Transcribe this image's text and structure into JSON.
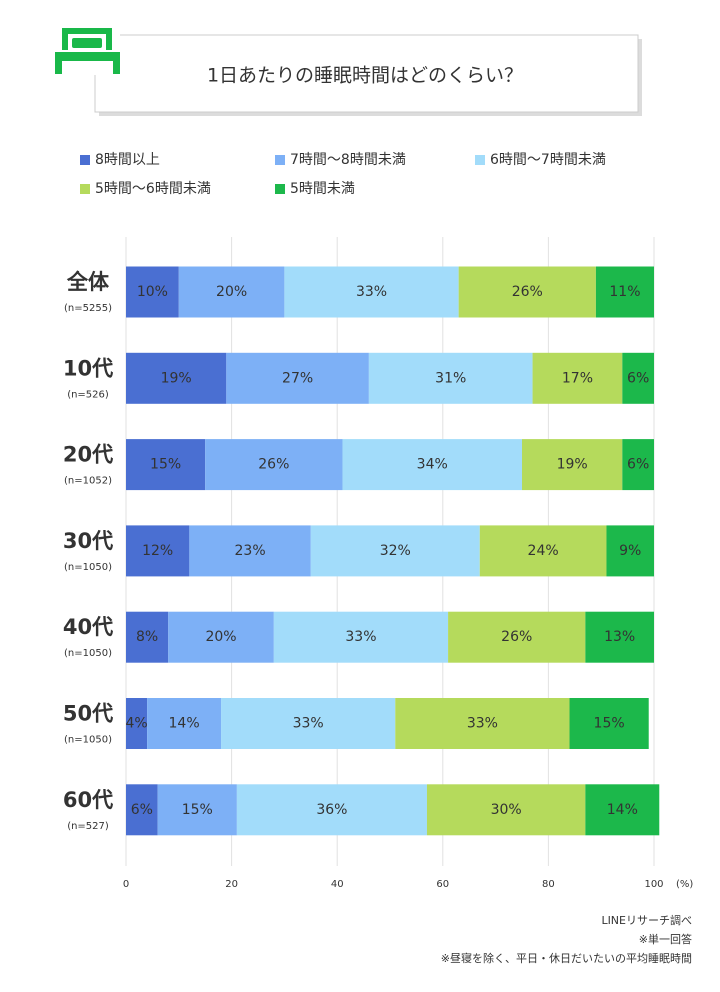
{
  "chart_data": {
    "type": "stacked-bar",
    "orientation": "horizontal",
    "title": "1日あたりの睡眠時間はどのくらい？",
    "categories": [
      "全体",
      "10代",
      "20代",
      "30代",
      "40代",
      "50代",
      "60代"
    ],
    "category_notes": [
      "(n=5255)",
      "(n=526)",
      "(n=1052)",
      "(n=1050)",
      "(n=1050)",
      "(n=1050)",
      "(n=527)"
    ],
    "series": [
      {
        "name": "8時間以上",
        "color": "#4a6fd2",
        "label_color": "#ffffff",
        "values": [
          10,
          19,
          15,
          12,
          8,
          4,
          6
        ],
        "value_labels": [
          "10%",
          "19%",
          "15%",
          "12%",
          "8%",
          "4%",
          "6%"
        ]
      },
      {
        "name": "7時間～8時間未満",
        "color": "#7db0f6",
        "label_color": "#ffffff",
        "values": [
          20,
          27,
          26,
          23,
          20,
          14,
          15
        ],
        "value_labels": [
          "20%",
          "27%",
          "26%",
          "23%",
          "20%",
          "14%",
          "15%"
        ]
      },
      {
        "name": "6時間～7時間未満",
        "color": "#a2dcfa",
        "label_color": "#666666",
        "values": [
          33,
          31,
          34,
          32,
          33,
          33,
          36
        ],
        "value_labels": [
          "33%",
          "31%",
          "34%",
          "32%",
          "33%",
          "33%",
          "36%"
        ]
      },
      {
        "name": "5時間～6時間未満",
        "color": "#b5da5c",
        "label_color": "#666666",
        "values": [
          26,
          17,
          19,
          24,
          26,
          33,
          30
        ],
        "value_labels": [
          "26%",
          "17%",
          "19%",
          "24%",
          "26%",
          "33%",
          "30%"
        ]
      },
      {
        "name": "5時間未満",
        "color": "#1cb84b",
        "label_color": "#ffffff",
        "values": [
          11,
          6,
          6,
          9,
          13,
          15,
          14
        ],
        "value_labels": [
          "11%",
          "6%",
          "6%",
          "9%",
          "13%",
          "15%",
          "14%"
        ]
      }
    ],
    "xlim": [
      0,
      100
    ],
    "xticks": [
      0,
      20,
      40,
      60,
      80,
      100
    ],
    "x_unit": "(%)",
    "grid": true,
    "notes": [
      "LINEリサーチ調べ",
      "※単一回答",
      "※昼寝を除く、平日・休日だいたいの平均睡眠時間"
    ]
  }
}
